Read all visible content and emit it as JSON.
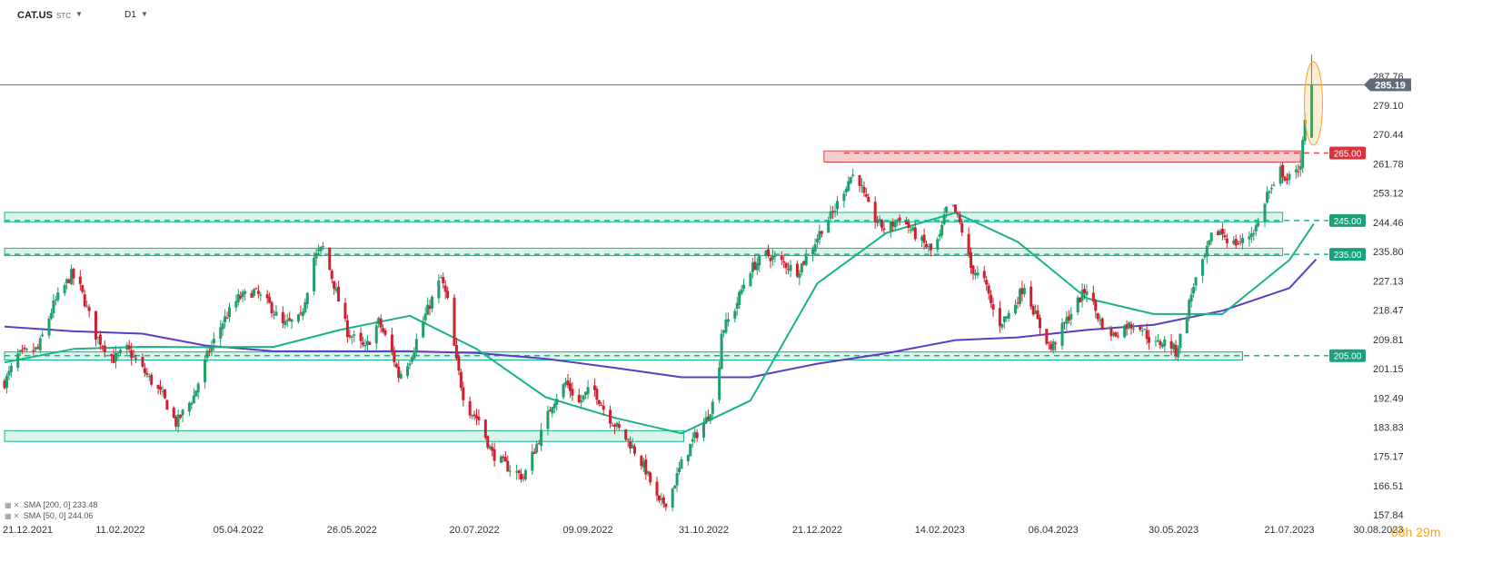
{
  "toolbar": {
    "symbol": "CAT.US",
    "source": "STC",
    "timeframe": "D1"
  },
  "indicators": [
    {
      "label": "SMA",
      "params": "[200, 0]",
      "value": "233.48",
      "color": "#5b3cc4"
    },
    {
      "label": "SMA",
      "params": "[50, 0]",
      "value": "244.06",
      "color": "#19b38a"
    }
  ],
  "countdown": "08h 29m",
  "colors": {
    "up": "#1f9f6a",
    "down": "#d0202e",
    "zone_green": "#19b38a",
    "zone_red": "#e0454d",
    "price_line": "#607080",
    "highlight": "#f5a623"
  },
  "chart_data": {
    "type": "candlestick",
    "title": "",
    "ylim": [
      157.84,
      296.4
    ],
    "y_ticks": [
      "287.76",
      "279.10",
      "270.44",
      "261.78",
      "253.12",
      "244.46",
      "235.80",
      "227.13",
      "218.47",
      "209.81",
      "201.15",
      "192.49",
      "183.83",
      "175.17",
      "166.51",
      "157.84"
    ],
    "x_ticks": [
      "21.12.2021",
      "11.02.2022",
      "05.04.2022",
      "26.05.2022",
      "20.07.2022",
      "09.09.2022",
      "31.10.2022",
      "21.12.2022",
      "14.02.2023",
      "06.04.2023",
      "30.05.2023",
      "21.07.2023",
      "30.08.2023"
    ],
    "current_price": "285.19",
    "levels": [
      {
        "value": "265.00",
        "color": "red"
      },
      {
        "value": "245.00",
        "color": "green"
      },
      {
        "value": "235.00",
        "color": "green"
      },
      {
        "value": "205.00",
        "color": "green"
      }
    ],
    "zones": [
      {
        "start": "24.12.2022",
        "end": "26.07.2023",
        "low": 262.3,
        "high": 265.6,
        "color": "red"
      },
      {
        "start": "21.12.2021",
        "end": "18.07.2023",
        "low": 244.6,
        "high": 247.4,
        "color": "green"
      },
      {
        "start": "21.12.2021",
        "end": "18.07.2023",
        "low": 234.6,
        "high": 236.8,
        "color": "green"
      },
      {
        "start": "21.12.2021",
        "end": "30.06.2023",
        "low": 203.7,
        "high": 206.1,
        "color": "green"
      },
      {
        "start": "21.12.2021",
        "end": "22.10.2022",
        "low": 179.6,
        "high": 182.8,
        "color": "green"
      }
    ],
    "close_path": [
      [
        "21.12.2021",
        197
      ],
      [
        "27.12.2021",
        205
      ],
      [
        "05.01.2022",
        207
      ],
      [
        "12.01.2022",
        220
      ],
      [
        "20.01.2022",
        229
      ],
      [
        "24.01.2022",
        225
      ],
      [
        "31.01.2022",
        211
      ],
      [
        "08.02.2022",
        204
      ],
      [
        "14.02.2022",
        207
      ],
      [
        "22.02.2022",
        200
      ],
      [
        "02.03.2022",
        193
      ],
      [
        "08.03.2022",
        185
      ],
      [
        "16.03.2022",
        193
      ],
      [
        "22.03.2022",
        205
      ],
      [
        "29.03.2022",
        215
      ],
      [
        "05.04.2022",
        222
      ],
      [
        "12.04.2022",
        224
      ],
      [
        "19.04.2022",
        220
      ],
      [
        "25.04.2022",
        214
      ],
      [
        "03.05.2022",
        216
      ],
      [
        "09.05.2022",
        234
      ],
      [
        "13.05.2022",
        237
      ],
      [
        "18.05.2022",
        226
      ],
      [
        "24.05.2022",
        212
      ],
      [
        "01.06.2022",
        207
      ],
      [
        "07.06.2022",
        215
      ],
      [
        "13.06.2022",
        206
      ],
      [
        "16.06.2022",
        199
      ],
      [
        "21.06.2022",
        204
      ],
      [
        "28.06.2022",
        217
      ],
      [
        "05.07.2022",
        228
      ],
      [
        "08.07.2022",
        221
      ],
      [
        "12.07.2022",
        203
      ],
      [
        "16.07.2022",
        190
      ],
      [
        "22.07.2022",
        186
      ],
      [
        "28.07.2022",
        176
      ],
      [
        "04.08.2022",
        172
      ],
      [
        "11.08.2022",
        169
      ],
      [
        "19.08.2022",
        182
      ],
      [
        "24.08.2022",
        191
      ],
      [
        "30.08.2022",
        197
      ],
      [
        "05.09.2022",
        191
      ],
      [
        "11.09.2022",
        196
      ],
      [
        "17.09.2022",
        188
      ],
      [
        "23.09.2022",
        183
      ],
      [
        "29.09.2022",
        178
      ],
      [
        "05.10.2022",
        171
      ],
      [
        "11.10.2022",
        161
      ],
      [
        "15.10.2022",
        162
      ],
      [
        "21.10.2022",
        173
      ],
      [
        "27.10.2022",
        181
      ],
      [
        "01.11.2022",
        186
      ],
      [
        "06.11.2022",
        194
      ],
      [
        "08.11.2022",
        212
      ],
      [
        "14.11.2022",
        219
      ],
      [
        "20.11.2022",
        230
      ],
      [
        "28.11.2022",
        235
      ],
      [
        "04.12.2022",
        233
      ],
      [
        "12.12.2022",
        230
      ],
      [
        "18.12.2022",
        236
      ],
      [
        "24.12.2022",
        244
      ],
      [
        "28.12.2022",
        247
      ],
      [
        "01.01.2023",
        253
      ],
      [
        "05.01.2023",
        258
      ],
      [
        "08.01.2023",
        259
      ],
      [
        "11.01.2023",
        252
      ],
      [
        "15.01.2023",
        246
      ],
      [
        "21.01.2023",
        242
      ],
      [
        "27.01.2023",
        246
      ],
      [
        "04.02.2023",
        240
      ],
      [
        "10.02.2023",
        236
      ],
      [
        "14.02.2023",
        240
      ],
      [
        "18.02.2023",
        251
      ],
      [
        "22.02.2023",
        246
      ],
      [
        "25.02.2023",
        240
      ],
      [
        "28.02.2023",
        231
      ],
      [
        "06.03.2023",
        227
      ],
      [
        "12.03.2023",
        214
      ],
      [
        "18.03.2023",
        218
      ],
      [
        "24.03.2023",
        226
      ],
      [
        "30.03.2023",
        215
      ],
      [
        "05.04.2023",
        207
      ],
      [
        "09.04.2023",
        212
      ],
      [
        "15.04.2023",
        219
      ],
      [
        "21.04.2023",
        225
      ],
      [
        "27.04.2023",
        215
      ],
      [
        "03.05.2023",
        211
      ],
      [
        "09.05.2023",
        214
      ],
      [
        "15.05.2023",
        214
      ],
      [
        "21.05.2023",
        208
      ],
      [
        "25.05.2023",
        209
      ],
      [
        "28.05.2023",
        209
      ],
      [
        "31.05.2023",
        206
      ],
      [
        "04.06.2023",
        215
      ],
      [
        "08.06.2023",
        226
      ],
      [
        "12.06.2023",
        232
      ],
      [
        "16.06.2023",
        240
      ],
      [
        "20.06.2023",
        242
      ],
      [
        "25.06.2023",
        238
      ],
      [
        "01.07.2023",
        239
      ],
      [
        "07.07.2023",
        244
      ],
      [
        "11.07.2023",
        253
      ],
      [
        "15.07.2023",
        255
      ],
      [
        "17.07.2023",
        260
      ],
      [
        "20.07.2023",
        257
      ],
      [
        "24.07.2023",
        259
      ],
      [
        "26.07.2023",
        262
      ],
      [
        "30.07.2023",
        285.19
      ]
    ],
    "sma200_path": [
      [
        "21.12.2021",
        213.6
      ],
      [
        "21.01.2022",
        212.2
      ],
      [
        "21.02.2022",
        211.5
      ],
      [
        "21.03.2022",
        208.0
      ],
      [
        "21.04.2022",
        206.3
      ],
      [
        "21.05.2022",
        206.3
      ],
      [
        "21.06.2022",
        206.3
      ],
      [
        "21.07.2022",
        205.8
      ],
      [
        "21.08.2022",
        204.1
      ],
      [
        "21.09.2022",
        201.4
      ],
      [
        "21.10.2022",
        198.6
      ],
      [
        "21.11.2022",
        198.6
      ],
      [
        "21.12.2022",
        202.6
      ],
      [
        "21.01.2023",
        205.7
      ],
      [
        "21.02.2023",
        209.6
      ],
      [
        "21.03.2023",
        210.4
      ],
      [
        "21.04.2023",
        212.6
      ],
      [
        "21.05.2023",
        214.1
      ],
      [
        "21.06.2023",
        218.3
      ],
      [
        "21.07.2023",
        225.0
      ],
      [
        "02.08.2023",
        233.48
      ]
    ],
    "sma50_path": [
      [
        "21.12.2021",
        203.0
      ],
      [
        "21.01.2022",
        207.0
      ],
      [
        "21.02.2022",
        207.6
      ],
      [
        "21.03.2022",
        207.5
      ],
      [
        "21.04.2022",
        207.6
      ],
      [
        "21.05.2022",
        212.7
      ],
      [
        "21.06.2022",
        216.8
      ],
      [
        "21.07.2022",
        207.0
      ],
      [
        "21.08.2022",
        192.7
      ],
      [
        "21.09.2022",
        186.6
      ],
      [
        "21.10.2022",
        182.0
      ],
      [
        "21.11.2022",
        191.7
      ],
      [
        "21.12.2022",
        226.4
      ],
      [
        "21.01.2023",
        241.3
      ],
      [
        "21.02.2023",
        247.3
      ],
      [
        "21.03.2023",
        238.7
      ],
      [
        "21.04.2023",
        222.0
      ],
      [
        "21.05.2023",
        217.3
      ],
      [
        "21.06.2023",
        217.3
      ],
      [
        "21.07.2023",
        233.3
      ],
      [
        "01.08.2023",
        244.06
      ]
    ],
    "last_candle": {
      "date": "31.07.2023",
      "open": 269.5,
      "high": 294.1,
      "low": 269.5,
      "close": 285.19
    }
  }
}
